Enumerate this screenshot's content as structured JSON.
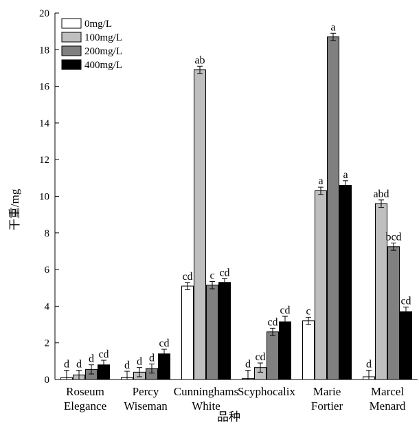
{
  "chart_data": {
    "type": "bar",
    "xlabel": "品种",
    "ylabel": "干重/mg",
    "ylim": [
      0,
      20
    ],
    "yticks": [
      0,
      2,
      4,
      6,
      8,
      10,
      12,
      14,
      16,
      18,
      20
    ],
    "grid": false,
    "legend_position": "top-left",
    "categories": [
      [
        "Roseum",
        "Elegance"
      ],
      [
        "Percy",
        "Wiseman"
      ],
      [
        "Cunninghams",
        "White"
      ],
      [
        "Scyphocalix"
      ],
      [
        "Marie",
        "Fortier"
      ],
      [
        "Marcel",
        "Menard"
      ]
    ],
    "series": [
      {
        "name": "0mg/L",
        "color": "#ffffff",
        "values": [
          0.1,
          0.1,
          5.1,
          0.05,
          3.2,
          0.15
        ],
        "errors": [
          0.4,
          0.35,
          0.2,
          0.45,
          0.2,
          0.35
        ],
        "labels": [
          "d",
          "d",
          "cd",
          "d",
          "c",
          "d"
        ]
      },
      {
        "name": "100mg/L",
        "color": "#bfbfbf",
        "values": [
          0.25,
          0.4,
          16.9,
          0.65,
          10.3,
          9.6
        ],
        "errors": [
          0.25,
          0.25,
          0.2,
          0.25,
          0.2,
          0.2
        ],
        "labels": [
          "d",
          "d",
          "ab",
          "cd",
          "a",
          "abd"
        ]
      },
      {
        "name": "200mg/L",
        "color": "#808080",
        "values": [
          0.55,
          0.6,
          5.15,
          2.6,
          18.7,
          7.25
        ],
        "errors": [
          0.25,
          0.25,
          0.2,
          0.2,
          0.2,
          0.2
        ],
        "labels": [
          "d",
          "d",
          "c",
          "cd",
          "a",
          "bcd"
        ]
      },
      {
        "name": "400mg/L",
        "color": "#000000",
        "values": [
          0.8,
          1.4,
          5.3,
          3.15,
          10.6,
          3.7
        ],
        "errors": [
          0.25,
          0.25,
          0.2,
          0.3,
          0.25,
          0.25
        ],
        "labels": [
          "cd",
          "cd",
          "cd",
          "cd",
          "a",
          "cd"
        ]
      }
    ]
  }
}
